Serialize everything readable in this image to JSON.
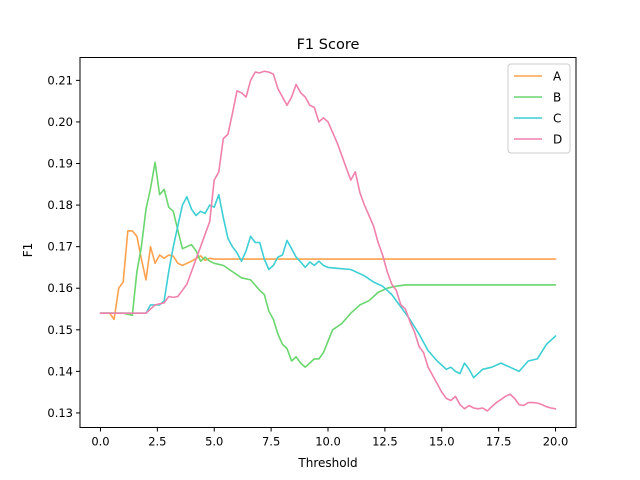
{
  "chart_data": {
    "type": "line",
    "title": "F1 Score",
    "xlabel": "Threshold",
    "ylabel": "F1",
    "xlim": [
      -0.9,
      20.9
    ],
    "ylim": [
      0.1265,
      0.2155
    ],
    "xticks": [
      0.0,
      2.5,
      5.0,
      7.5,
      10.0,
      12.5,
      15.0,
      17.5,
      20.0
    ],
    "xtick_labels": [
      "0.0",
      "2.5",
      "5.0",
      "7.5",
      "10.0",
      "12.5",
      "15.0",
      "17.5",
      "20.0"
    ],
    "yticks": [
      0.13,
      0.14,
      0.15,
      0.16,
      0.17,
      0.18,
      0.19,
      0.2,
      0.21
    ],
    "ytick_labels": [
      "0.13",
      "0.14",
      "0.15",
      "0.16",
      "0.17",
      "0.18",
      "0.19",
      "0.20",
      "0.21"
    ],
    "grid": false,
    "legend": "top-right",
    "series": [
      {
        "name": "A",
        "color": "#ffa24d",
        "x": [
          0,
          0.4,
          0.6,
          0.8,
          1.0,
          1.2,
          1.4,
          1.6,
          1.8,
          2.0,
          2.2,
          2.4,
          2.6,
          2.8,
          3.0,
          3.2,
          3.4,
          3.6,
          4.0,
          4.4,
          4.6,
          4.8,
          5.0,
          6.0,
          8.0,
          10.0,
          14.0,
          20.0
        ],
        "y": [
          0.154,
          0.154,
          0.1525,
          0.16,
          0.1615,
          0.1738,
          0.1738,
          0.1725,
          0.167,
          0.162,
          0.17,
          0.166,
          0.168,
          0.1672,
          0.168,
          0.1677,
          0.166,
          0.1655,
          0.1665,
          0.1678,
          0.1667,
          0.1672,
          0.167,
          0.167,
          0.167,
          0.167,
          0.167,
          0.167
        ]
      },
      {
        "name": "B",
        "color": "#6ad66e",
        "x": [
          0,
          1.0,
          1.4,
          1.6,
          1.8,
          2.0,
          2.2,
          2.4,
          2.6,
          2.8,
          3.0,
          3.2,
          3.4,
          3.6,
          3.8,
          4.0,
          4.2,
          4.4,
          4.6,
          4.8,
          5.0,
          5.4,
          5.8,
          6.2,
          6.6,
          7.0,
          7.2,
          7.4,
          7.6,
          7.8,
          8.0,
          8.2,
          8.4,
          8.6,
          8.8,
          9.0,
          9.4,
          9.6,
          9.8,
          10.2,
          10.6,
          11.0,
          11.4,
          11.8,
          12.2,
          12.6,
          13.0,
          13.4,
          14.0,
          16.0,
          18.0,
          20.0
        ],
        "y": [
          0.154,
          0.154,
          0.1535,
          0.164,
          0.17,
          0.179,
          0.184,
          0.1903,
          0.1825,
          0.1838,
          0.1795,
          0.1785,
          0.174,
          0.1695,
          0.17,
          0.1705,
          0.169,
          0.1665,
          0.1675,
          0.1665,
          0.166,
          0.1655,
          0.164,
          0.1625,
          0.162,
          0.1595,
          0.1585,
          0.1545,
          0.1525,
          0.149,
          0.1465,
          0.1455,
          0.1425,
          0.1435,
          0.142,
          0.141,
          0.143,
          0.143,
          0.1445,
          0.15,
          0.1515,
          0.154,
          0.156,
          0.157,
          0.159,
          0.16,
          0.1605,
          0.1608,
          0.1608,
          0.1608,
          0.1608,
          0.1608
        ]
      },
      {
        "name": "C",
        "color": "#3ccfd4",
        "x": [
          0,
          2.0,
          2.2,
          2.6,
          2.8,
          3.0,
          3.2,
          3.4,
          3.6,
          3.8,
          4.0,
          4.2,
          4.4,
          4.6,
          4.8,
          5.0,
          5.2,
          5.4,
          5.6,
          5.8,
          6.0,
          6.2,
          6.4,
          6.6,
          6.8,
          7.0,
          7.2,
          7.4,
          7.6,
          7.8,
          8.0,
          8.2,
          8.4,
          8.6,
          8.8,
          9.0,
          9.2,
          9.4,
          9.6,
          9.8,
          10.0,
          10.4,
          11.0,
          11.6,
          12.0,
          12.4,
          12.8,
          13.2,
          13.6,
          14.0,
          14.4,
          14.8,
          15.2,
          15.4,
          15.6,
          15.8,
          16.0,
          16.2,
          16.4,
          16.8,
          17.2,
          17.6,
          18.0,
          18.4,
          18.8,
          19.2,
          19.6,
          19.8,
          20.0
        ],
        "y": [
          0.154,
          0.154,
          0.156,
          0.156,
          0.157,
          0.164,
          0.17,
          0.175,
          0.18,
          0.182,
          0.179,
          0.1775,
          0.1785,
          0.178,
          0.18,
          0.1795,
          0.1825,
          0.177,
          0.172,
          0.17,
          0.1685,
          0.1665,
          0.169,
          0.1725,
          0.171,
          0.171,
          0.167,
          0.1645,
          0.1655,
          0.1675,
          0.168,
          0.1715,
          0.1695,
          0.1675,
          0.1663,
          0.165,
          0.1663,
          0.1655,
          0.1665,
          0.1655,
          0.165,
          0.1648,
          0.1645,
          0.163,
          0.1615,
          0.1605,
          0.1585,
          0.1555,
          0.1525,
          0.149,
          0.145,
          0.1425,
          0.1405,
          0.141,
          0.14,
          0.1395,
          0.142,
          0.1405,
          0.1385,
          0.1405,
          0.141,
          0.142,
          0.141,
          0.14,
          0.1425,
          0.143,
          0.1465,
          0.1475,
          0.1485
        ]
      },
      {
        "name": "D",
        "color": "#f081ad",
        "x": [
          0,
          2.0,
          2.4,
          2.8,
          3.0,
          3.2,
          3.4,
          3.6,
          3.8,
          4.0,
          4.2,
          4.4,
          4.6,
          4.8,
          5.0,
          5.2,
          5.4,
          5.6,
          5.8,
          6.0,
          6.2,
          6.4,
          6.6,
          6.8,
          7.0,
          7.2,
          7.4,
          7.6,
          7.8,
          8.0,
          8.2,
          8.4,
          8.6,
          8.8,
          9.0,
          9.2,
          9.4,
          9.6,
          9.8,
          10.0,
          10.2,
          10.4,
          10.6,
          10.8,
          11.0,
          11.2,
          11.4,
          11.6,
          11.8,
          12.0,
          12.2,
          12.4,
          12.6,
          12.8,
          13.0,
          13.2,
          13.4,
          13.6,
          13.8,
          14.0,
          14.2,
          14.4,
          14.6,
          14.8,
          15.0,
          15.2,
          15.4,
          15.6,
          15.8,
          16.0,
          16.2,
          16.4,
          16.6,
          16.8,
          17.0,
          17.2,
          17.4,
          17.6,
          17.8,
          18.0,
          18.2,
          18.4,
          18.6,
          18.8,
          19.0,
          19.2,
          19.4,
          19.6,
          19.8,
          20.0
        ],
        "y": [
          0.154,
          0.154,
          0.156,
          0.1565,
          0.158,
          0.1578,
          0.158,
          0.1595,
          0.161,
          0.164,
          0.167,
          0.17,
          0.173,
          0.176,
          0.186,
          0.188,
          0.196,
          0.197,
          0.202,
          0.2075,
          0.207,
          0.206,
          0.21,
          0.212,
          0.2118,
          0.2122,
          0.212,
          0.2115,
          0.208,
          0.206,
          0.204,
          0.206,
          0.209,
          0.207,
          0.206,
          0.204,
          0.2035,
          0.2,
          0.201,
          0.2,
          0.1975,
          0.195,
          0.192,
          0.189,
          0.186,
          0.188,
          0.183,
          0.18,
          0.1775,
          0.175,
          0.171,
          0.168,
          0.164,
          0.161,
          0.1595,
          0.156,
          0.155,
          0.152,
          0.1495,
          0.146,
          0.1445,
          0.141,
          0.139,
          0.137,
          0.135,
          0.1335,
          0.133,
          0.134,
          0.132,
          0.131,
          0.1318,
          0.1312,
          0.131,
          0.1312,
          0.1305,
          0.1315,
          0.1325,
          0.1332,
          0.134,
          0.1345,
          0.1335,
          0.132,
          0.1318,
          0.1325,
          0.1325,
          0.1324,
          0.132,
          0.1315,
          0.1312,
          0.131
        ]
      }
    ]
  }
}
